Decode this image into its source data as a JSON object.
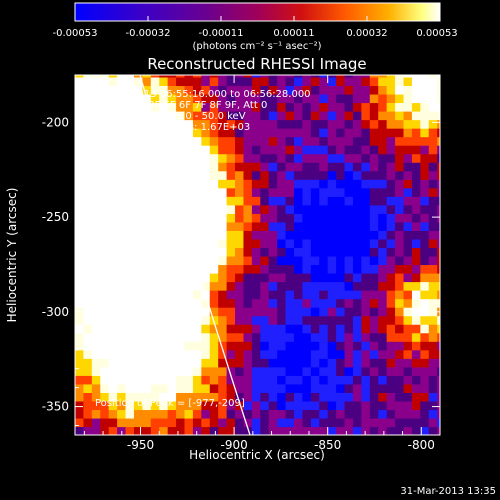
{
  "colorbar": {
    "ticks": [
      "-0.00053",
      "-0.00032",
      "-0.00011",
      "0.00011",
      "0.00032",
      "0.00053"
    ],
    "units": "(photons cm⁻² s⁻¹ asec⁻²)"
  },
  "plot": {
    "title": "Reconstructed RHESSI Image",
    "info_lines": [
      "31-Mar-2013 06:55:16.000 to 06:56:28.000",
      "Detectors: 3F 5F 6F 7F 8F 9F, Att 0",
      "Energy Range: 25.0 - 50.0 keV",
      "Clean    Total counts: 1.67E+03"
    ],
    "peak_label": "Position of Peak = [-977,-209]",
    "timestamp": "31-Mar-2013 13:35"
  },
  "chart_data": {
    "type": "heatmap",
    "title": "Reconstructed RHESSI Image",
    "xlabel": "Heliocentric X (arcsec)",
    "ylabel": "Heliocentric Y (arcsec)",
    "x_ticks": [
      -950,
      -900,
      -850,
      -800
    ],
    "y_ticks": [
      -200,
      -250,
      -300,
      -350
    ],
    "xlim": [
      -985,
      -790
    ],
    "ylim": [
      -365,
      -175
    ],
    "color_range": [
      -0.00053,
      0.00053
    ],
    "peak": [
      -977,
      -209
    ],
    "colors": {
      "cmap": [
        "#0000ff",
        "#2020ff",
        "#4b0082",
        "#8b008b",
        "#c00000",
        "#ff4000",
        "#ff8c00",
        "#ffd700",
        "#ffffe0",
        "#ffffff"
      ],
      "limb": "#ffffff"
    }
  }
}
